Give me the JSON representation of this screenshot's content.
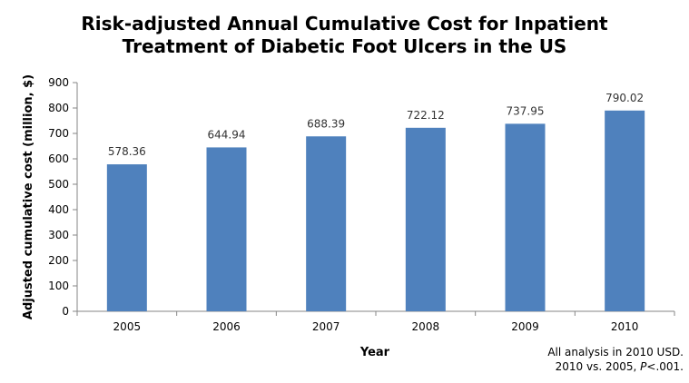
{
  "chart_data": {
    "type": "bar",
    "title_lines": [
      "Risk-adjusted Annual Cumulative Cost for Inpatient",
      "Treatment of Diabetic Foot Ulcers in the US"
    ],
    "categories": [
      "2005",
      "2006",
      "2007",
      "2008",
      "2009",
      "2010"
    ],
    "values": [
      578.36,
      644.94,
      688.39,
      722.12,
      737.95,
      790.02
    ],
    "data_labels": [
      "578.36",
      "644.94",
      "688.39",
      "722.12",
      "737.95",
      "790.02"
    ],
    "xlabel": "Year",
    "ylabel": "Adjusted cumulative cost (million, $)",
    "ylim": [
      0,
      900
    ],
    "yticks": [
      0,
      100,
      200,
      300,
      400,
      500,
      600,
      700,
      800,
      900
    ],
    "grid": false,
    "legend": "none",
    "bar_color": "#4F81BD"
  },
  "footnote": {
    "line1": "All analysis in 2010 USD.",
    "line2_prefix": "2010 vs. 2005, ",
    "line2_p": "P",
    "line2_suffix": "<.001."
  }
}
